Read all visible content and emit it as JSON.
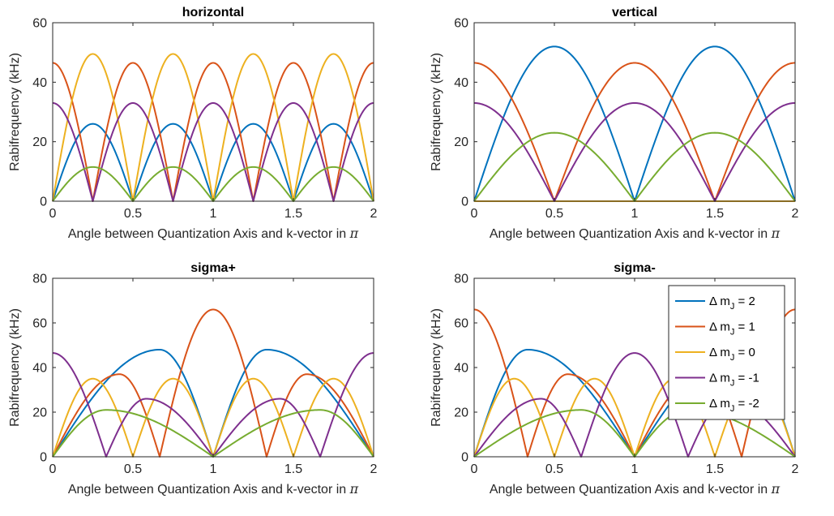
{
  "colors": {
    "dm2": "#0072BD",
    "dm1": "#D95319",
    "dm0": "#EDB120",
    "dmm1": "#7E2F8E",
    "dmm2": "#77AC30"
  },
  "legend": {
    "placement": "top-right of sigma- panel",
    "prefix": "Δ m",
    "sub": "J",
    "entries": [
      {
        "key": "dm2",
        "suffix": " = 2"
      },
      {
        "key": "dm1",
        "suffix": " = 1"
      },
      {
        "key": "dm0",
        "suffix": " = 0"
      },
      {
        "key": "dmm1",
        "suffix": " = -1"
      },
      {
        "key": "dmm2",
        "suffix": " = -2"
      }
    ]
  },
  "chart_data": [
    {
      "type": "line",
      "title": "horizontal",
      "xlabel": "Angle between Quantization Axis and k-vector in π",
      "ylabel": "Rabifrequency (kHz)",
      "xlim": [
        0,
        2
      ],
      "ylim": [
        0,
        60
      ],
      "xticks": [
        "0",
        "0.5",
        "1",
        "1.5",
        "2"
      ],
      "yticks": [
        "0",
        "20",
        "40",
        "60"
      ],
      "grid": false,
      "series": [
        {
          "key": "dm2",
          "x": [
            0,
            0.25,
            0.5,
            0.75,
            1,
            1.25,
            1.5,
            1.75,
            2
          ],
          "y": [
            0,
            26,
            0,
            26,
            0,
            26,
            0,
            26,
            0
          ],
          "shape": "lobes"
        },
        {
          "key": "dm1",
          "x": [
            0,
            0.25,
            0.5,
            0.75,
            1,
            1.25,
            1.5,
            1.75,
            2
          ],
          "y": [
            46.5,
            0,
            46.5,
            0,
            46.5,
            0,
            46.5,
            0,
            46.5
          ],
          "shape": "lobes"
        },
        {
          "key": "dm0",
          "x": [
            0,
            0.25,
            0.5,
            0.75,
            1,
            1.25,
            1.5,
            1.75,
            2
          ],
          "y": [
            0,
            49.5,
            0,
            49.5,
            0,
            49.5,
            0,
            49.5,
            0
          ],
          "shape": "lobes"
        },
        {
          "key": "dmm1",
          "x": [
            0,
            0.25,
            0.5,
            0.75,
            1,
            1.25,
            1.5,
            1.75,
            2
          ],
          "y": [
            33,
            0,
            33,
            0,
            33,
            0,
            33,
            0,
            33
          ],
          "shape": "lobes"
        },
        {
          "key": "dmm2",
          "x": [
            0,
            0.25,
            0.5,
            0.75,
            1,
            1.25,
            1.5,
            1.75,
            2
          ],
          "y": [
            0,
            11.5,
            0,
            11.5,
            0,
            11.5,
            0,
            11.5,
            0
          ],
          "shape": "lobes"
        }
      ]
    },
    {
      "type": "line",
      "title": "vertical",
      "xlabel": "Angle between Quantization Axis and k-vector in π",
      "ylabel": "Rabifrequency (kHz)",
      "xlim": [
        0,
        2
      ],
      "ylim": [
        0,
        60
      ],
      "xticks": [
        "0",
        "0.5",
        "1",
        "1.5",
        "2"
      ],
      "yticks": [
        "0",
        "20",
        "40",
        "60"
      ],
      "grid": false,
      "series": [
        {
          "key": "dm2",
          "x": [
            0,
            0.5,
            1,
            1.5,
            2
          ],
          "y": [
            0,
            52,
            0,
            52,
            0
          ],
          "shape": "lobes"
        },
        {
          "key": "dm1",
          "x": [
            0,
            0.5,
            1,
            1.5,
            2
          ],
          "y": [
            46.5,
            0,
            46.5,
            0,
            46.5
          ],
          "shape": "lobes"
        },
        {
          "key": "dm0",
          "x": [
            0,
            2
          ],
          "y": [
            0,
            0
          ],
          "shape": "linear"
        },
        {
          "key": "dmm1",
          "x": [
            0,
            0.5,
            1,
            1.5,
            2
          ],
          "y": [
            33,
            0,
            33,
            0,
            33
          ],
          "shape": "lobes"
        },
        {
          "key": "dmm2",
          "x": [
            0,
            0.5,
            1,
            1.5,
            2
          ],
          "y": [
            0,
            23,
            0,
            23,
            0
          ],
          "shape": "lobes"
        }
      ]
    },
    {
      "type": "line",
      "title": "sigma+",
      "xlabel": "Angle between Quantization Axis and k-vector in π",
      "ylabel": "Rabifrequency (kHz)",
      "xlim": [
        0,
        2
      ],
      "ylim": [
        0,
        80
      ],
      "xticks": [
        "0",
        "0.5",
        "1",
        "1.5",
        "2"
      ],
      "yticks": [
        "0",
        "20",
        "40",
        "60",
        "80"
      ],
      "grid": false,
      "series": [
        {
          "key": "dm2",
          "x": [
            0,
            0.667,
            1,
            1.333,
            2
          ],
          "y": [
            0,
            48,
            0,
            48,
            0
          ],
          "shape": "lobes"
        },
        {
          "key": "dm1",
          "x": [
            0,
            0.417,
            0.667,
            1,
            1.333,
            1.583,
            2
          ],
          "y": [
            0,
            37,
            0,
            66,
            0,
            37,
            0
          ],
          "shape": "lobes"
        },
        {
          "key": "dm0",
          "x": [
            0,
            0.25,
            0.5,
            0.75,
            1,
            1.25,
            1.5,
            1.75,
            2
          ],
          "y": [
            0,
            35,
            0,
            35,
            0,
            35,
            0,
            35,
            0
          ],
          "shape": "lobes"
        },
        {
          "key": "dmm1",
          "x": [
            0,
            0.333,
            0.583,
            1,
            1.417,
            1.667,
            2
          ],
          "y": [
            46.5,
            0,
            26,
            0,
            26,
            0,
            46.5
          ],
          "shape": "lobes"
        },
        {
          "key": "dmm2",
          "x": [
            0,
            0.333,
            1,
            1.667,
            2
          ],
          "y": [
            0,
            21,
            0,
            21,
            0
          ],
          "shape": "lobes"
        }
      ]
    },
    {
      "type": "line",
      "title": "sigma-",
      "xlabel": "Angle between Quantization Axis and k-vector in π",
      "ylabel": "Rabifrequency (kHz)",
      "xlim": [
        0,
        2
      ],
      "ylim": [
        0,
        80
      ],
      "xticks": [
        "0",
        "0.5",
        "1",
        "1.5",
        "2"
      ],
      "yticks": [
        "0",
        "20",
        "40",
        "60",
        "80"
      ],
      "grid": false,
      "legend": true,
      "series": [
        {
          "key": "dm2",
          "x": [
            0,
            0.333,
            1,
            1.667,
            2
          ],
          "y": [
            0,
            48,
            0,
            48,
            0
          ],
          "shape": "lobes"
        },
        {
          "key": "dm1",
          "x": [
            0,
            0.333,
            0.583,
            1,
            1.417,
            1.667,
            2
          ],
          "y": [
            66,
            0,
            37,
            0,
            37,
            0,
            66
          ],
          "shape": "lobes"
        },
        {
          "key": "dm0",
          "x": [
            0,
            0.25,
            0.5,
            0.75,
            1,
            1.25,
            1.5,
            1.75,
            2
          ],
          "y": [
            0,
            35,
            0,
            35,
            0,
            35,
            0,
            35,
            0
          ],
          "shape": "lobes"
        },
        {
          "key": "dmm1",
          "x": [
            0,
            0.417,
            0.667,
            1,
            1.333,
            1.583,
            2
          ],
          "y": [
            0,
            26,
            0,
            46.5,
            0,
            26,
            0
          ],
          "shape": "lobes"
        },
        {
          "key": "dmm2",
          "x": [
            0,
            0.667,
            1,
            1.333,
            2
          ],
          "y": [
            0,
            21,
            0,
            21,
            0
          ],
          "shape": "lobes"
        }
      ]
    }
  ]
}
